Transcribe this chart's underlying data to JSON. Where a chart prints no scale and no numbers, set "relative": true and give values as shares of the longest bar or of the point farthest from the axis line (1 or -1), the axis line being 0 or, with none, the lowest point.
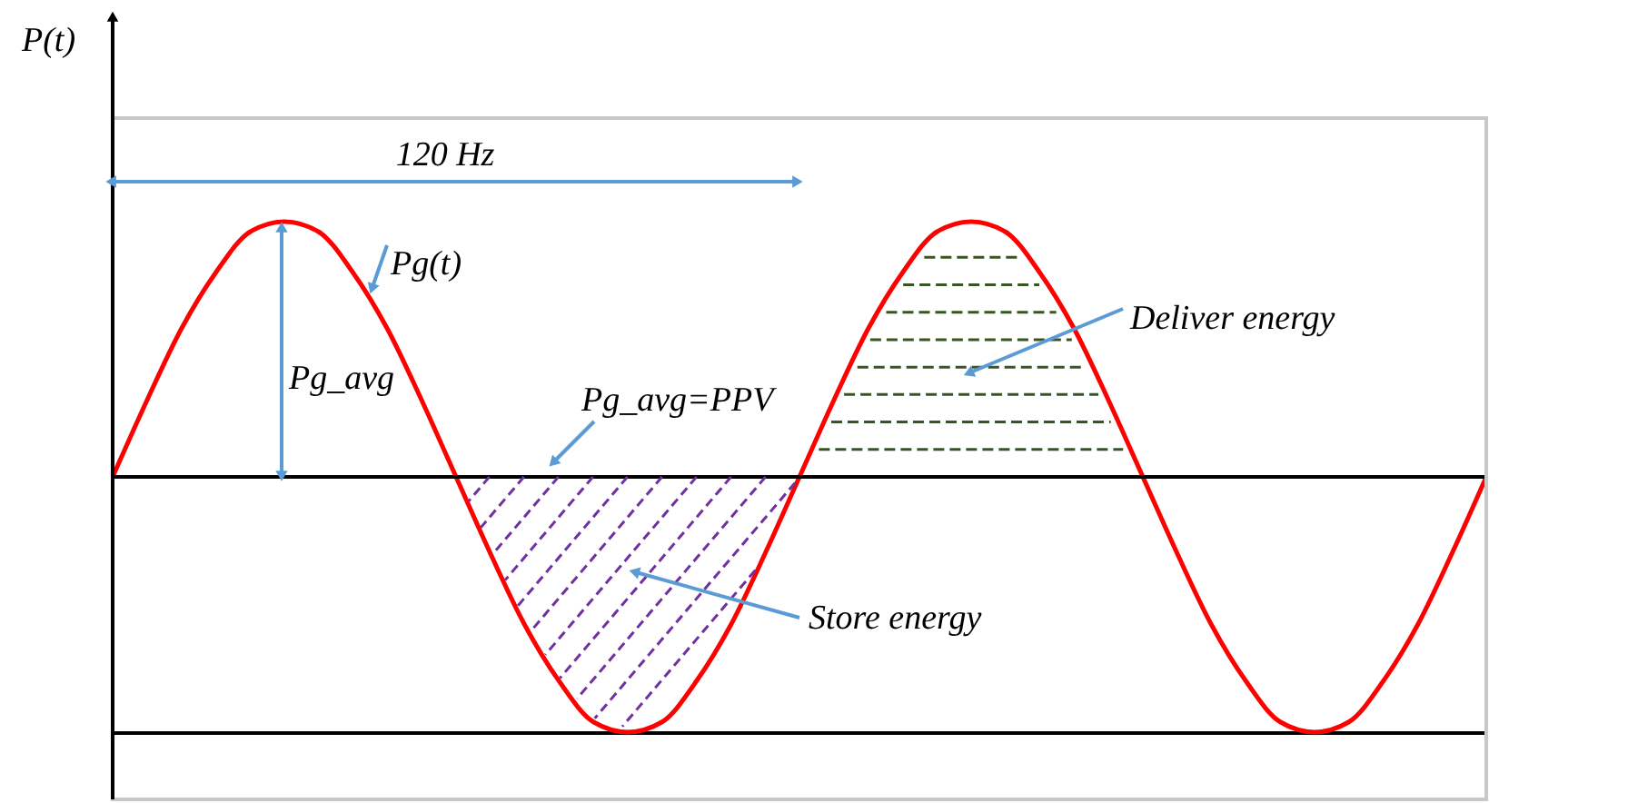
{
  "chart_data": {
    "type": "line",
    "relative": true,
    "ylabel": "P(t)",
    "line_style": "solid",
    "categories": [
      null,
      null,
      null,
      null,
      null,
      null,
      null,
      null,
      null,
      null,
      null,
      null,
      null,
      null,
      null,
      null,
      null,
      null,
      null,
      null,
      null,
      null,
      null,
      null,
      null,
      null,
      null,
      null,
      null,
      null,
      null,
      null,
      null,
      null,
      null,
      null,
      null,
      null,
      null,
      null,
      null
    ],
    "series": [
      {
        "color": "#ff0000",
        "values": [
          0.5,
          0.65,
          0.79,
          0.9,
          0.98,
          1,
          0.98,
          0.9,
          0.79,
          0.65,
          0.5,
          0.35,
          0.21,
          0.1,
          0.02,
          0,
          0.02,
          0.1,
          0.21,
          0.35,
          0.5,
          0.65,
          0.79,
          0.9,
          0.98,
          1,
          0.98,
          0.9,
          0.79,
          0.65,
          0.5,
          0.35,
          0.21,
          0.1,
          0.02,
          0,
          0.02,
          0.1,
          0.21,
          0.35,
          0.5
        ]
      }
    ],
    "ref_lines": [
      {
        "axis": "y",
        "value": 0.5,
        "color": "#000000"
      }
    ],
    "annotations": [
      "120 Hz",
      "Pg(t)",
      "Pg_avg",
      "Pg_avg=PPV",
      "Deliver energy",
      "Store energy"
    ]
  }
}
